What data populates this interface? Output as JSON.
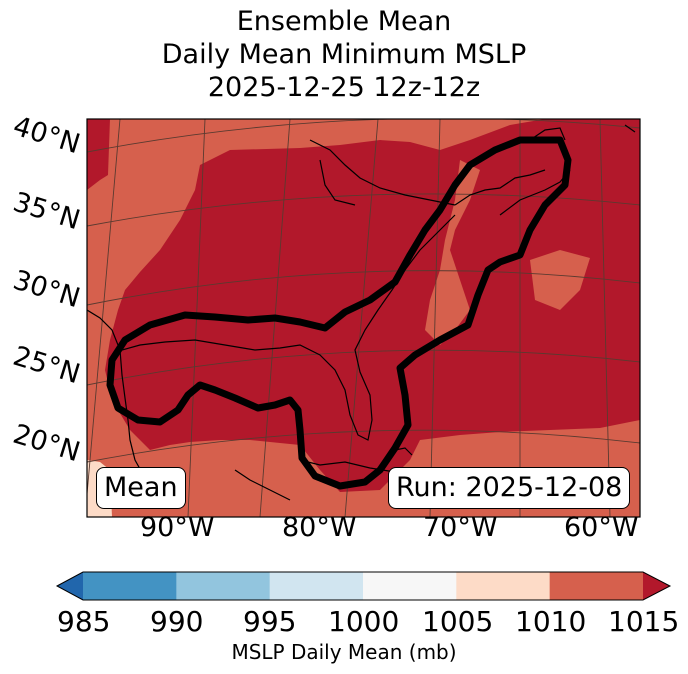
{
  "title": {
    "line1": "Ensemble Mean",
    "line2": "Daily Mean Minimum MSLP",
    "line3": "2025-12-25 12z-12z"
  },
  "map": {
    "lat_labels": [
      "40°N",
      "35°N",
      "30°N",
      "25°N",
      "20°N"
    ],
    "lon_labels": [
      "90°W",
      "80°W",
      "70°W",
      "60°W"
    ],
    "left_box": "Mean",
    "right_box": "Run: 2025-12-08",
    "colors": {
      "c1005_1010": "#fddbc7",
      "c1010_1015": "#d6604d",
      "c1015plus": "#b2182b",
      "contour": "#000000",
      "coast": "#000000",
      "grid": "#5a3a30"
    }
  },
  "colorbar": {
    "ticks": [
      "985",
      "990",
      "995",
      "1000",
      "1005",
      "1010",
      "1015"
    ],
    "colors": [
      "#2166ac",
      "#4393c3",
      "#92c5de",
      "#d1e5f0",
      "#f7f7f7",
      "#fddbc7",
      "#d6604d",
      "#b2182b"
    ],
    "label": "MSLP Daily Mean (mb)"
  }
}
